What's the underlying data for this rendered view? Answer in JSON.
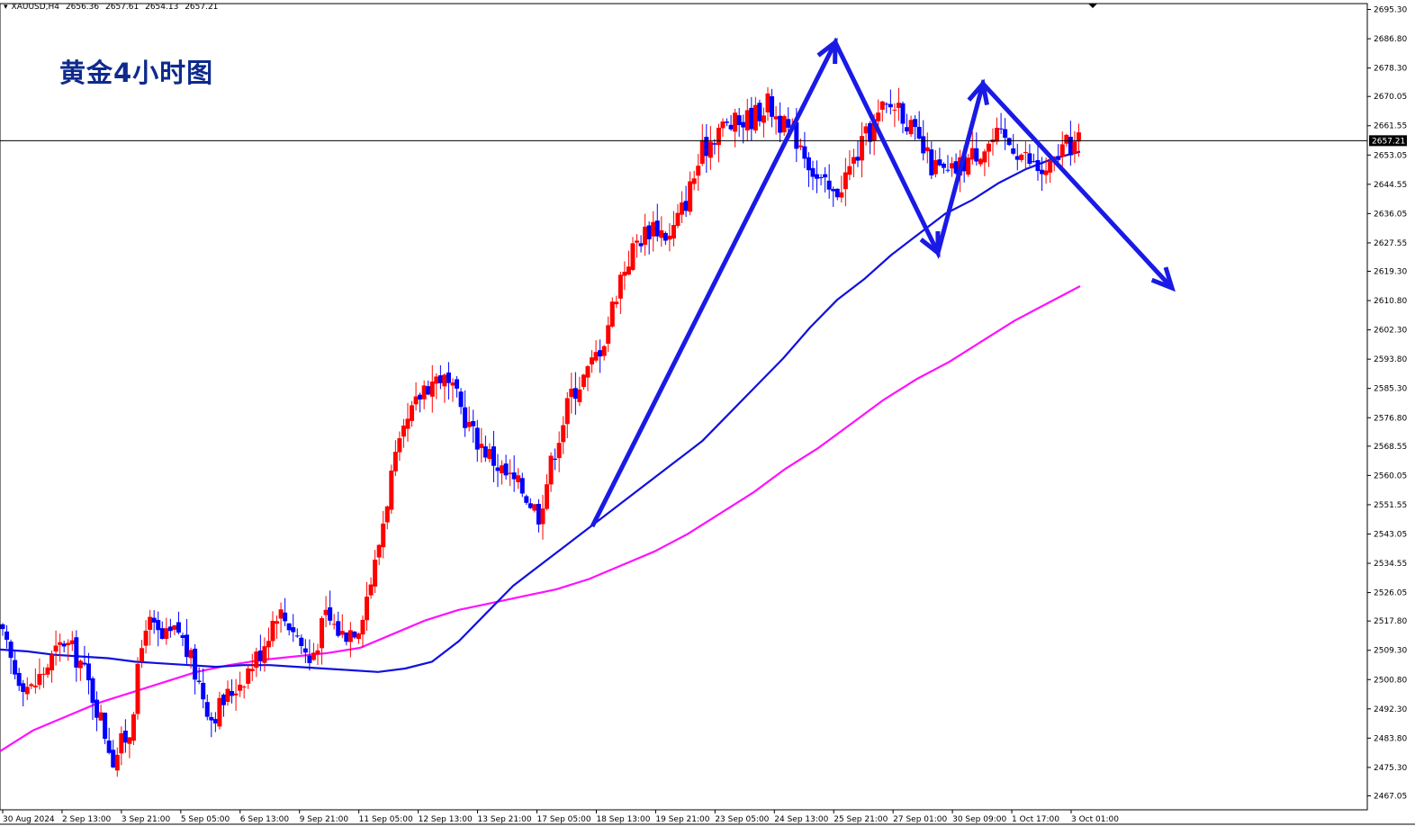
{
  "header": {
    "symbol": "XAUUSD,H4",
    "open": "2656.36",
    "high": "2657.61",
    "low": "2654.13",
    "close": "2657.21"
  },
  "annotation": {
    "title": "黄金4小时图"
  },
  "colors": {
    "bull_candle": "#ff0000",
    "bear_candle": "#0000ff",
    "ma_fast": "#1010e0",
    "ma_slow": "#ff10ff",
    "arrows": "#1a1ae6",
    "current_price_line": "#000000",
    "price_tag_bg": "#000000",
    "title_text": "#0e2a8c"
  },
  "chart_data": {
    "type": "line",
    "instrument": "XAUUSD",
    "timeframe": "H4",
    "title": "黄金4小时图",
    "ylim": [
      2463.0,
      2697.0
    ],
    "y_ticks": [
      "2695.30",
      "2686.80",
      "2678.30",
      "2670.05",
      "2661.55",
      "2653.05",
      "2644.55",
      "2636.05",
      "2627.55",
      "2619.30",
      "2610.80",
      "2602.30",
      "2593.80",
      "2585.30",
      "2576.80",
      "2568.55",
      "2560.05",
      "2551.55",
      "2543.05",
      "2534.55",
      "2526.05",
      "2517.80",
      "2509.30",
      "2500.80",
      "2492.30",
      "2483.80",
      "2475.30",
      "2467.05"
    ],
    "x_ticks": [
      "30 Aug 2024",
      "2 Sep 13:00",
      "3 Sep 21:00",
      "5 Sep 05:00",
      "6 Sep 13:00",
      "9 Sep 21:00",
      "11 Sep 05:00",
      "12 Sep 13:00",
      "13 Sep 21:00",
      "17 Sep 05:00",
      "18 Sep 13:00",
      "19 Sep 21:00",
      "23 Sep 05:00",
      "24 Sep 13:00",
      "25 Sep 21:00",
      "27 Sep 01:00",
      "30 Sep 09:00",
      "1 Oct 17:00",
      "3 Oct 01:00"
    ],
    "current_price": 2657.21,
    "current_price_label": "2657.21",
    "grid": false,
    "series": [
      {
        "kind": "price_path",
        "values": [
          2516,
          2503,
          2498,
          2505,
          2512,
          2506,
          2493,
          2478,
          2486,
          2518,
          2512,
          2515,
          2503,
          2490,
          2496,
          2502,
          2509,
          2521,
          2516,
          2506,
          2519,
          2514,
          2517,
          2534,
          2560,
          2575,
          2586,
          2589,
          2582,
          2572,
          2566,
          2560,
          2556,
          2549,
          2568,
          2584,
          2590,
          2600,
          2618,
          2628,
          2633,
          2629,
          2640,
          2654,
          2661,
          2662,
          2664,
          2668,
          2661,
          2657,
          2646,
          2641,
          2649,
          2658,
          2666,
          2668,
          2658,
          2650,
          2647,
          2651,
          2655,
          2658,
          2656,
          2651,
          2647,
          2655,
          2657
        ]
      },
      {
        "kind": "moving_average_fast",
        "values": [
          2509.5,
          2509,
          2508,
          2507.5,
          2507,
          2506,
          2505.5,
          2505,
          2504.5,
          2505,
          2505,
          2504.5,
          2504,
          2503.5,
          2503,
          2504,
          2506,
          2512,
          2520,
          2528,
          2534,
          2540,
          2546,
          2552,
          2558,
          2564,
          2570,
          2578,
          2586,
          2594,
          2603,
          2611,
          2617,
          2624,
          2630,
          2636,
          2640,
          2645,
          2649,
          2652,
          2654
        ]
      },
      {
        "kind": "moving_average_slow",
        "values": [
          2480,
          2486,
          2490,
          2494,
          2497,
          2500,
          2503,
          2505,
          2506.5,
          2507.5,
          2508.5,
          2510,
          2514,
          2518,
          2521,
          2523,
          2525,
          2527,
          2530,
          2534,
          2538,
          2543,
          2549,
          2555,
          2562,
          2568,
          2575,
          2582,
          2588,
          2593,
          2599,
          2605,
          2610,
          2615
        ]
      }
    ]
  }
}
